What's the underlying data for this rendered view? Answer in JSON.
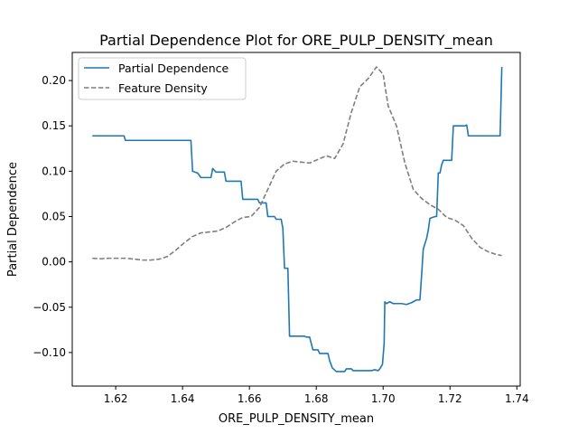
{
  "chart_data": {
    "type": "line",
    "title": "Partial Dependence Plot for ORE_PULP_DENSITY_mean",
    "xlabel": "ORE_PULP_DENSITY_mean",
    "ylabel": "Partial Dependence",
    "xlim": [
      1.607,
      1.741
    ],
    "ylim": [
      -0.137,
      0.231
    ],
    "x_ticks": [
      1.62,
      1.64,
      1.66,
      1.68,
      1.7,
      1.72,
      1.74
    ],
    "x_tick_labels": [
      "1.62",
      "1.64",
      "1.66",
      "1.68",
      "1.70",
      "1.72",
      "1.74"
    ],
    "y_ticks": [
      -0.1,
      -0.05,
      0.0,
      0.05,
      0.1,
      0.15,
      0.2
    ],
    "y_tick_labels": [
      "−0.10",
      "−0.05",
      "0.00",
      "0.05",
      "0.10",
      "0.15",
      "0.20"
    ],
    "grid": false,
    "legend_position": "top-left",
    "series": [
      {
        "name": "Partial Dependence",
        "color": "#1f77b4",
        "dash": "solid",
        "points": [
          [
            1.613,
            0.139
          ],
          [
            1.6225,
            0.139
          ],
          [
            1.6229,
            0.134
          ],
          [
            1.6425,
            0.134
          ],
          [
            1.643,
            0.1
          ],
          [
            1.6445,
            0.098
          ],
          [
            1.6455,
            0.093
          ],
          [
            1.6485,
            0.093
          ],
          [
            1.649,
            0.103
          ],
          [
            1.65,
            0.099
          ],
          [
            1.6525,
            0.099
          ],
          [
            1.653,
            0.089
          ],
          [
            1.6575,
            0.089
          ],
          [
            1.658,
            0.069
          ],
          [
            1.6625,
            0.069
          ],
          [
            1.663,
            0.065
          ],
          [
            1.665,
            0.065
          ],
          [
            1.6655,
            0.05
          ],
          [
            1.6675,
            0.05
          ],
          [
            1.668,
            0.047
          ],
          [
            1.6695,
            0.047
          ],
          [
            1.67,
            0.037
          ],
          [
            1.6705,
            -0.007
          ],
          [
            1.6715,
            -0.007
          ],
          [
            1.672,
            -0.082
          ],
          [
            1.6765,
            -0.082
          ],
          [
            1.677,
            -0.083
          ],
          [
            1.678,
            -0.083
          ],
          [
            1.6785,
            -0.09
          ],
          [
            1.679,
            -0.097
          ],
          [
            1.6805,
            -0.097
          ],
          [
            1.681,
            -0.101
          ],
          [
            1.6835,
            -0.101
          ],
          [
            1.684,
            -0.109
          ],
          [
            1.6848,
            -0.117
          ],
          [
            1.686,
            -0.121
          ],
          [
            1.6885,
            -0.121
          ],
          [
            1.689,
            -0.118
          ],
          [
            1.6905,
            -0.118
          ],
          [
            1.691,
            -0.12
          ],
          [
            1.6965,
            -0.12
          ],
          [
            1.6975,
            -0.119
          ],
          [
            1.6985,
            -0.12
          ],
          [
            1.699,
            -0.118
          ],
          [
            1.6998,
            -0.113
          ],
          [
            1.7003,
            -0.09
          ],
          [
            1.7005,
            -0.044
          ],
          [
            1.701,
            -0.046
          ],
          [
            1.702,
            -0.044
          ],
          [
            1.703,
            -0.046
          ],
          [
            1.7055,
            -0.046
          ],
          [
            1.707,
            -0.047
          ],
          [
            1.7085,
            -0.045
          ],
          [
            1.71,
            -0.042
          ],
          [
            1.711,
            -0.042
          ],
          [
            1.7115,
            -0.015
          ],
          [
            1.712,
            0.014
          ],
          [
            1.713,
            0.026
          ],
          [
            1.7135,
            0.035
          ],
          [
            1.714,
            0.048
          ],
          [
            1.7155,
            0.05
          ],
          [
            1.716,
            0.05
          ],
          [
            1.7165,
            0.098
          ],
          [
            1.717,
            0.098
          ],
          [
            1.7175,
            0.107
          ],
          [
            1.718,
            0.112
          ],
          [
            1.7205,
            0.112
          ],
          [
            1.721,
            0.15
          ],
          [
            1.7245,
            0.15
          ],
          [
            1.725,
            0.151
          ],
          [
            1.7255,
            0.139
          ],
          [
            1.735,
            0.139
          ],
          [
            1.7355,
            0.215
          ]
        ]
      },
      {
        "name": "Feature Density",
        "color": "#7f7f7f",
        "dash": "dashed",
        "points": [
          [
            1.613,
            0.004
          ],
          [
            1.6155,
            0.0035
          ],
          [
            1.618,
            0.004
          ],
          [
            1.6205,
            0.004
          ],
          [
            1.623,
            0.004
          ],
          [
            1.6255,
            0.003
          ],
          [
            1.628,
            0.002
          ],
          [
            1.6305,
            0.002
          ],
          [
            1.633,
            0.003
          ],
          [
            1.6355,
            0.006
          ],
          [
            1.638,
            0.013
          ],
          [
            1.6405,
            0.021
          ],
          [
            1.643,
            0.028
          ],
          [
            1.6455,
            0.032
          ],
          [
            1.648,
            0.033
          ],
          [
            1.6505,
            0.034
          ],
          [
            1.653,
            0.038
          ],
          [
            1.6555,
            0.044
          ],
          [
            1.658,
            0.049
          ],
          [
            1.6605,
            0.05
          ],
          [
            1.663,
            0.06
          ],
          [
            1.6655,
            0.08
          ],
          [
            1.668,
            0.1
          ],
          [
            1.6705,
            0.108
          ],
          [
            1.673,
            0.111
          ],
          [
            1.6755,
            0.11
          ],
          [
            1.678,
            0.109
          ],
          [
            1.6805,
            0.113
          ],
          [
            1.683,
            0.117
          ],
          [
            1.6855,
            0.114
          ],
          [
            1.688,
            0.13
          ],
          [
            1.6905,
            0.165
          ],
          [
            1.693,
            0.193
          ],
          [
            1.6955,
            0.202
          ],
          [
            1.698,
            0.215
          ],
          [
            1.7,
            0.207
          ],
          [
            1.7015,
            0.172
          ],
          [
            1.704,
            0.15
          ],
          [
            1.7065,
            0.109
          ],
          [
            1.709,
            0.08
          ],
          [
            1.7115,
            0.07
          ],
          [
            1.714,
            0.063
          ],
          [
            1.7165,
            0.058
          ],
          [
            1.719,
            0.049
          ],
          [
            1.7215,
            0.046
          ],
          [
            1.724,
            0.04
          ],
          [
            1.7265,
            0.026
          ],
          [
            1.729,
            0.016
          ],
          [
            1.7315,
            0.011
          ],
          [
            1.734,
            0.008
          ],
          [
            1.7355,
            0.007
          ]
        ]
      }
    ]
  }
}
